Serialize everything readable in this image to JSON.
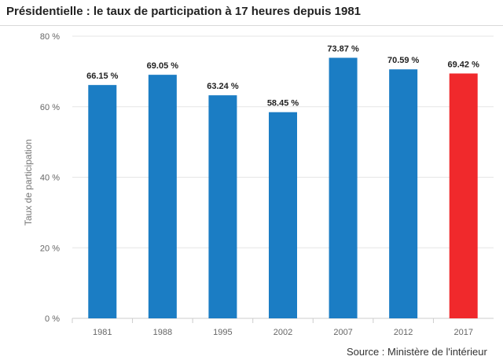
{
  "title": "Présidentielle : le taux de participation à 17 heures depuis 1981",
  "source": "Source : Ministère de l'intérieur",
  "colors": {
    "default_bar": "#1b7dc4",
    "highlight_bar": "#f0292c",
    "grid": "#e6e6e6",
    "axis_text": "#666666",
    "label_text": "#222222"
  },
  "chart_data": {
    "type": "bar",
    "categories": [
      "1981",
      "1988",
      "1995",
      "2002",
      "2007",
      "2012",
      "2017"
    ],
    "values": [
      66.15,
      69.05,
      63.24,
      58.45,
      73.87,
      70.59,
      69.42
    ],
    "value_labels": [
      "66.15 %",
      "69.05 %",
      "63.24 %",
      "58.45 %",
      "73.87 %",
      "70.59 %",
      "69.42 %"
    ],
    "highlight_index": 6,
    "ylabel": "Taux de participation",
    "ylim": [
      0,
      80
    ],
    "yticks": [
      0,
      20,
      40,
      60,
      80
    ],
    "ytick_labels": [
      "0 %",
      "20 %",
      "40 %",
      "60 %",
      "80 %"
    ],
    "grid": true
  }
}
